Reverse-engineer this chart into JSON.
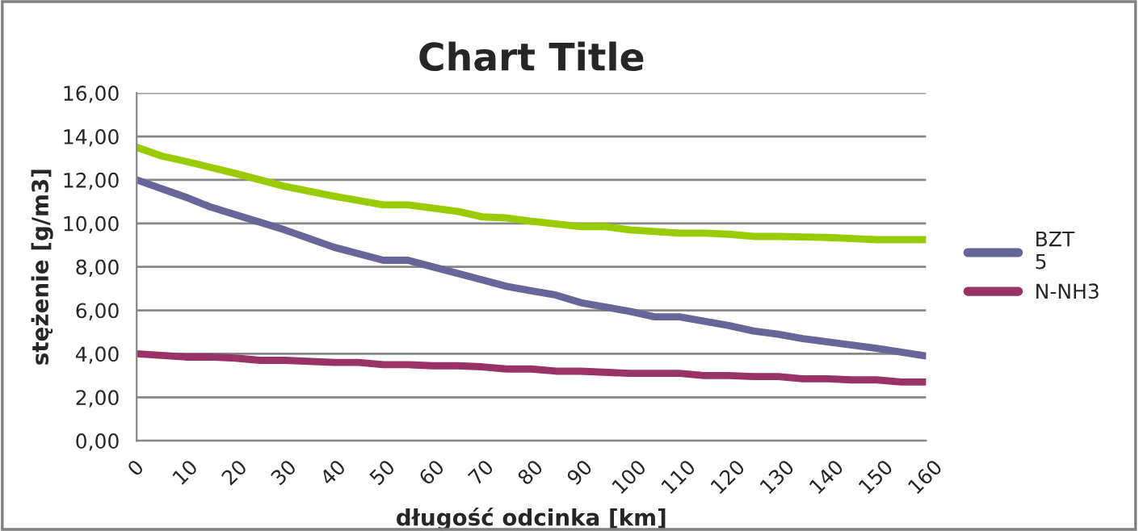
{
  "chart_data": {
    "type": "line",
    "title": "Chart Title",
    "xlabel": "długość odcinka [km]",
    "ylabel": "stężenie [g/m3]",
    "series": [
      {
        "color": "#99cc00",
        "x": [
          0,
          5,
          10,
          20,
          25,
          30,
          40,
          50,
          55,
          60,
          65,
          70,
          75,
          80,
          90,
          95,
          100,
          110,
          115,
          120,
          125,
          130,
          140,
          145,
          150,
          160
        ],
        "values": [
          13.5,
          13.1,
          12.85,
          12.3,
          12.0,
          11.7,
          11.25,
          10.85,
          10.85,
          10.7,
          10.55,
          10.3,
          10.25,
          10.1,
          9.85,
          9.85,
          9.7,
          9.55,
          9.55,
          9.5,
          9.4,
          9.4,
          9.35,
          9.3,
          9.25,
          9.25
        ]
      },
      {
        "name": "BZT 5",
        "color": "#666699",
        "x": [
          0,
          10,
          15,
          20,
          30,
          40,
          50,
          55,
          60,
          70,
          75,
          80,
          85,
          90,
          100,
          105,
          110,
          120,
          125,
          130,
          135,
          140,
          150,
          160
        ],
        "values": [
          12.0,
          11.2,
          10.75,
          10.4,
          9.7,
          8.9,
          8.3,
          8.3,
          8.0,
          7.4,
          7.1,
          6.9,
          6.7,
          6.35,
          5.95,
          5.7,
          5.7,
          5.3,
          5.05,
          4.9,
          4.7,
          4.55,
          4.25,
          3.9
        ]
      },
      {
        "name": "N-NH3",
        "color": "#993366",
        "x": [
          0,
          10,
          15,
          20,
          25,
          30,
          40,
          45,
          50,
          55,
          60,
          65,
          70,
          75,
          80,
          85,
          90,
          100,
          110,
          115,
          120,
          125,
          130,
          135,
          140,
          145,
          150,
          155,
          160
        ],
        "values": [
          4.0,
          3.85,
          3.85,
          3.8,
          3.7,
          3.7,
          3.6,
          3.6,
          3.5,
          3.5,
          3.45,
          3.45,
          3.4,
          3.3,
          3.3,
          3.2,
          3.2,
          3.1,
          3.1,
          3.0,
          3.0,
          2.95,
          2.95,
          2.85,
          2.85,
          2.8,
          2.8,
          2.7,
          2.7
        ]
      }
    ],
    "xlim": [
      0,
      160
    ],
    "xticks": [
      0,
      10,
      20,
      30,
      40,
      50,
      60,
      70,
      80,
      90,
      100,
      110,
      120,
      130,
      140,
      150,
      160
    ],
    "ylim": [
      0,
      16
    ],
    "yticks": [
      {
        "value": 0,
        "label": "0,00"
      },
      {
        "value": 2,
        "label": "2,00"
      },
      {
        "value": 4,
        "label": "4,00"
      },
      {
        "value": 6,
        "label": "6,00"
      },
      {
        "value": 8,
        "label": "8,00"
      },
      {
        "value": 10,
        "label": "10,00"
      },
      {
        "value": 12,
        "label": "12,00"
      },
      {
        "value": 14,
        "label": "14,00"
      },
      {
        "value": 16,
        "label": "16,00"
      }
    ],
    "grid": "y",
    "legend": "right",
    "line_style": "solid",
    "marker": "none"
  }
}
